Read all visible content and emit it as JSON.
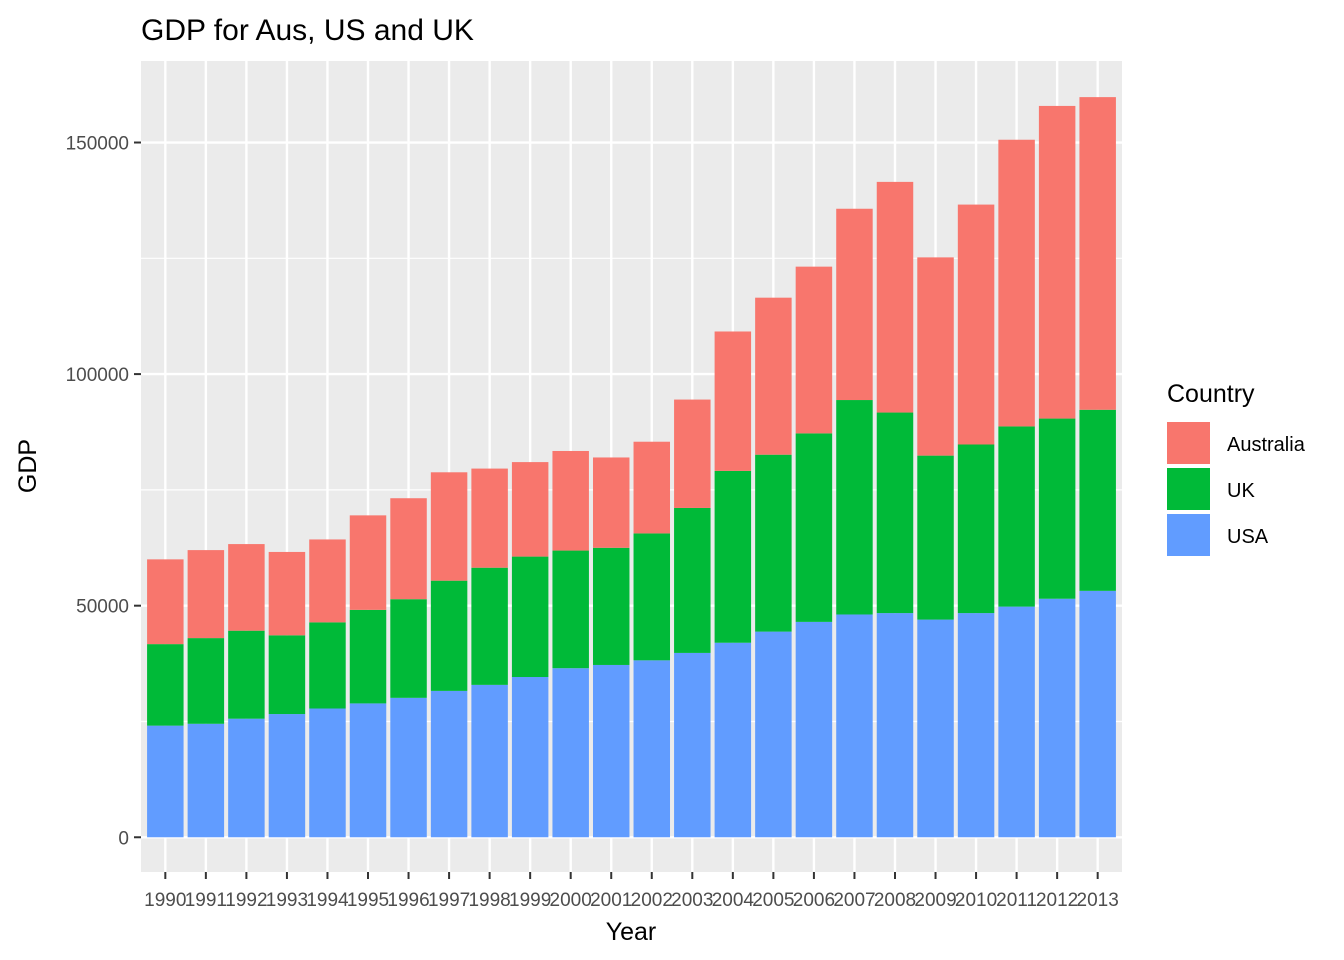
{
  "chart_data": {
    "type": "bar",
    "stacked": true,
    "title": "GDP for Aus, US and UK",
    "xlabel": "Year",
    "ylabel": "GDP",
    "categories": [
      "1990",
      "1991",
      "1992",
      "1993",
      "1994",
      "1995",
      "1996",
      "1997",
      "1998",
      "1999",
      "2000",
      "2001",
      "2002",
      "2003",
      "2004",
      "2005",
      "2006",
      "2007",
      "2008",
      "2009",
      "2010",
      "2011",
      "2012",
      "2013"
    ],
    "series": [
      {
        "name": "USA",
        "color": "#619CFF",
        "values": [
          24100,
          24500,
          25600,
          26600,
          27800,
          28900,
          30100,
          31600,
          32900,
          34600,
          36500,
          37200,
          38200,
          39800,
          42000,
          44400,
          46500,
          48100,
          48400,
          47000,
          48400,
          49800,
          51500,
          53200
        ]
      },
      {
        "name": "UK",
        "color": "#00BA38",
        "values": [
          17600,
          18500,
          19000,
          17000,
          18600,
          20200,
          21300,
          23800,
          25300,
          26000,
          25400,
          25300,
          27400,
          31300,
          37100,
          38200,
          40700,
          46300,
          43300,
          35400,
          36400,
          38900,
          38900,
          39100
        ]
      },
      {
        "name": "Australia",
        "color": "#F8766D",
        "values": [
          18300,
          19000,
          18700,
          18000,
          17900,
          20400,
          21800,
          23400,
          21400,
          20400,
          21500,
          19500,
          19800,
          23400,
          30100,
          33900,
          36000,
          41300,
          49800,
          42800,
          51800,
          61900,
          67500,
          67500
        ]
      }
    ],
    "ylim": [
      -7500,
      167600
    ],
    "yticks": [
      0,
      50000,
      100000,
      150000
    ],
    "legend": {
      "title": "Country",
      "position": "right",
      "order": [
        "Australia",
        "UK",
        "USA"
      ]
    },
    "grid": true
  }
}
